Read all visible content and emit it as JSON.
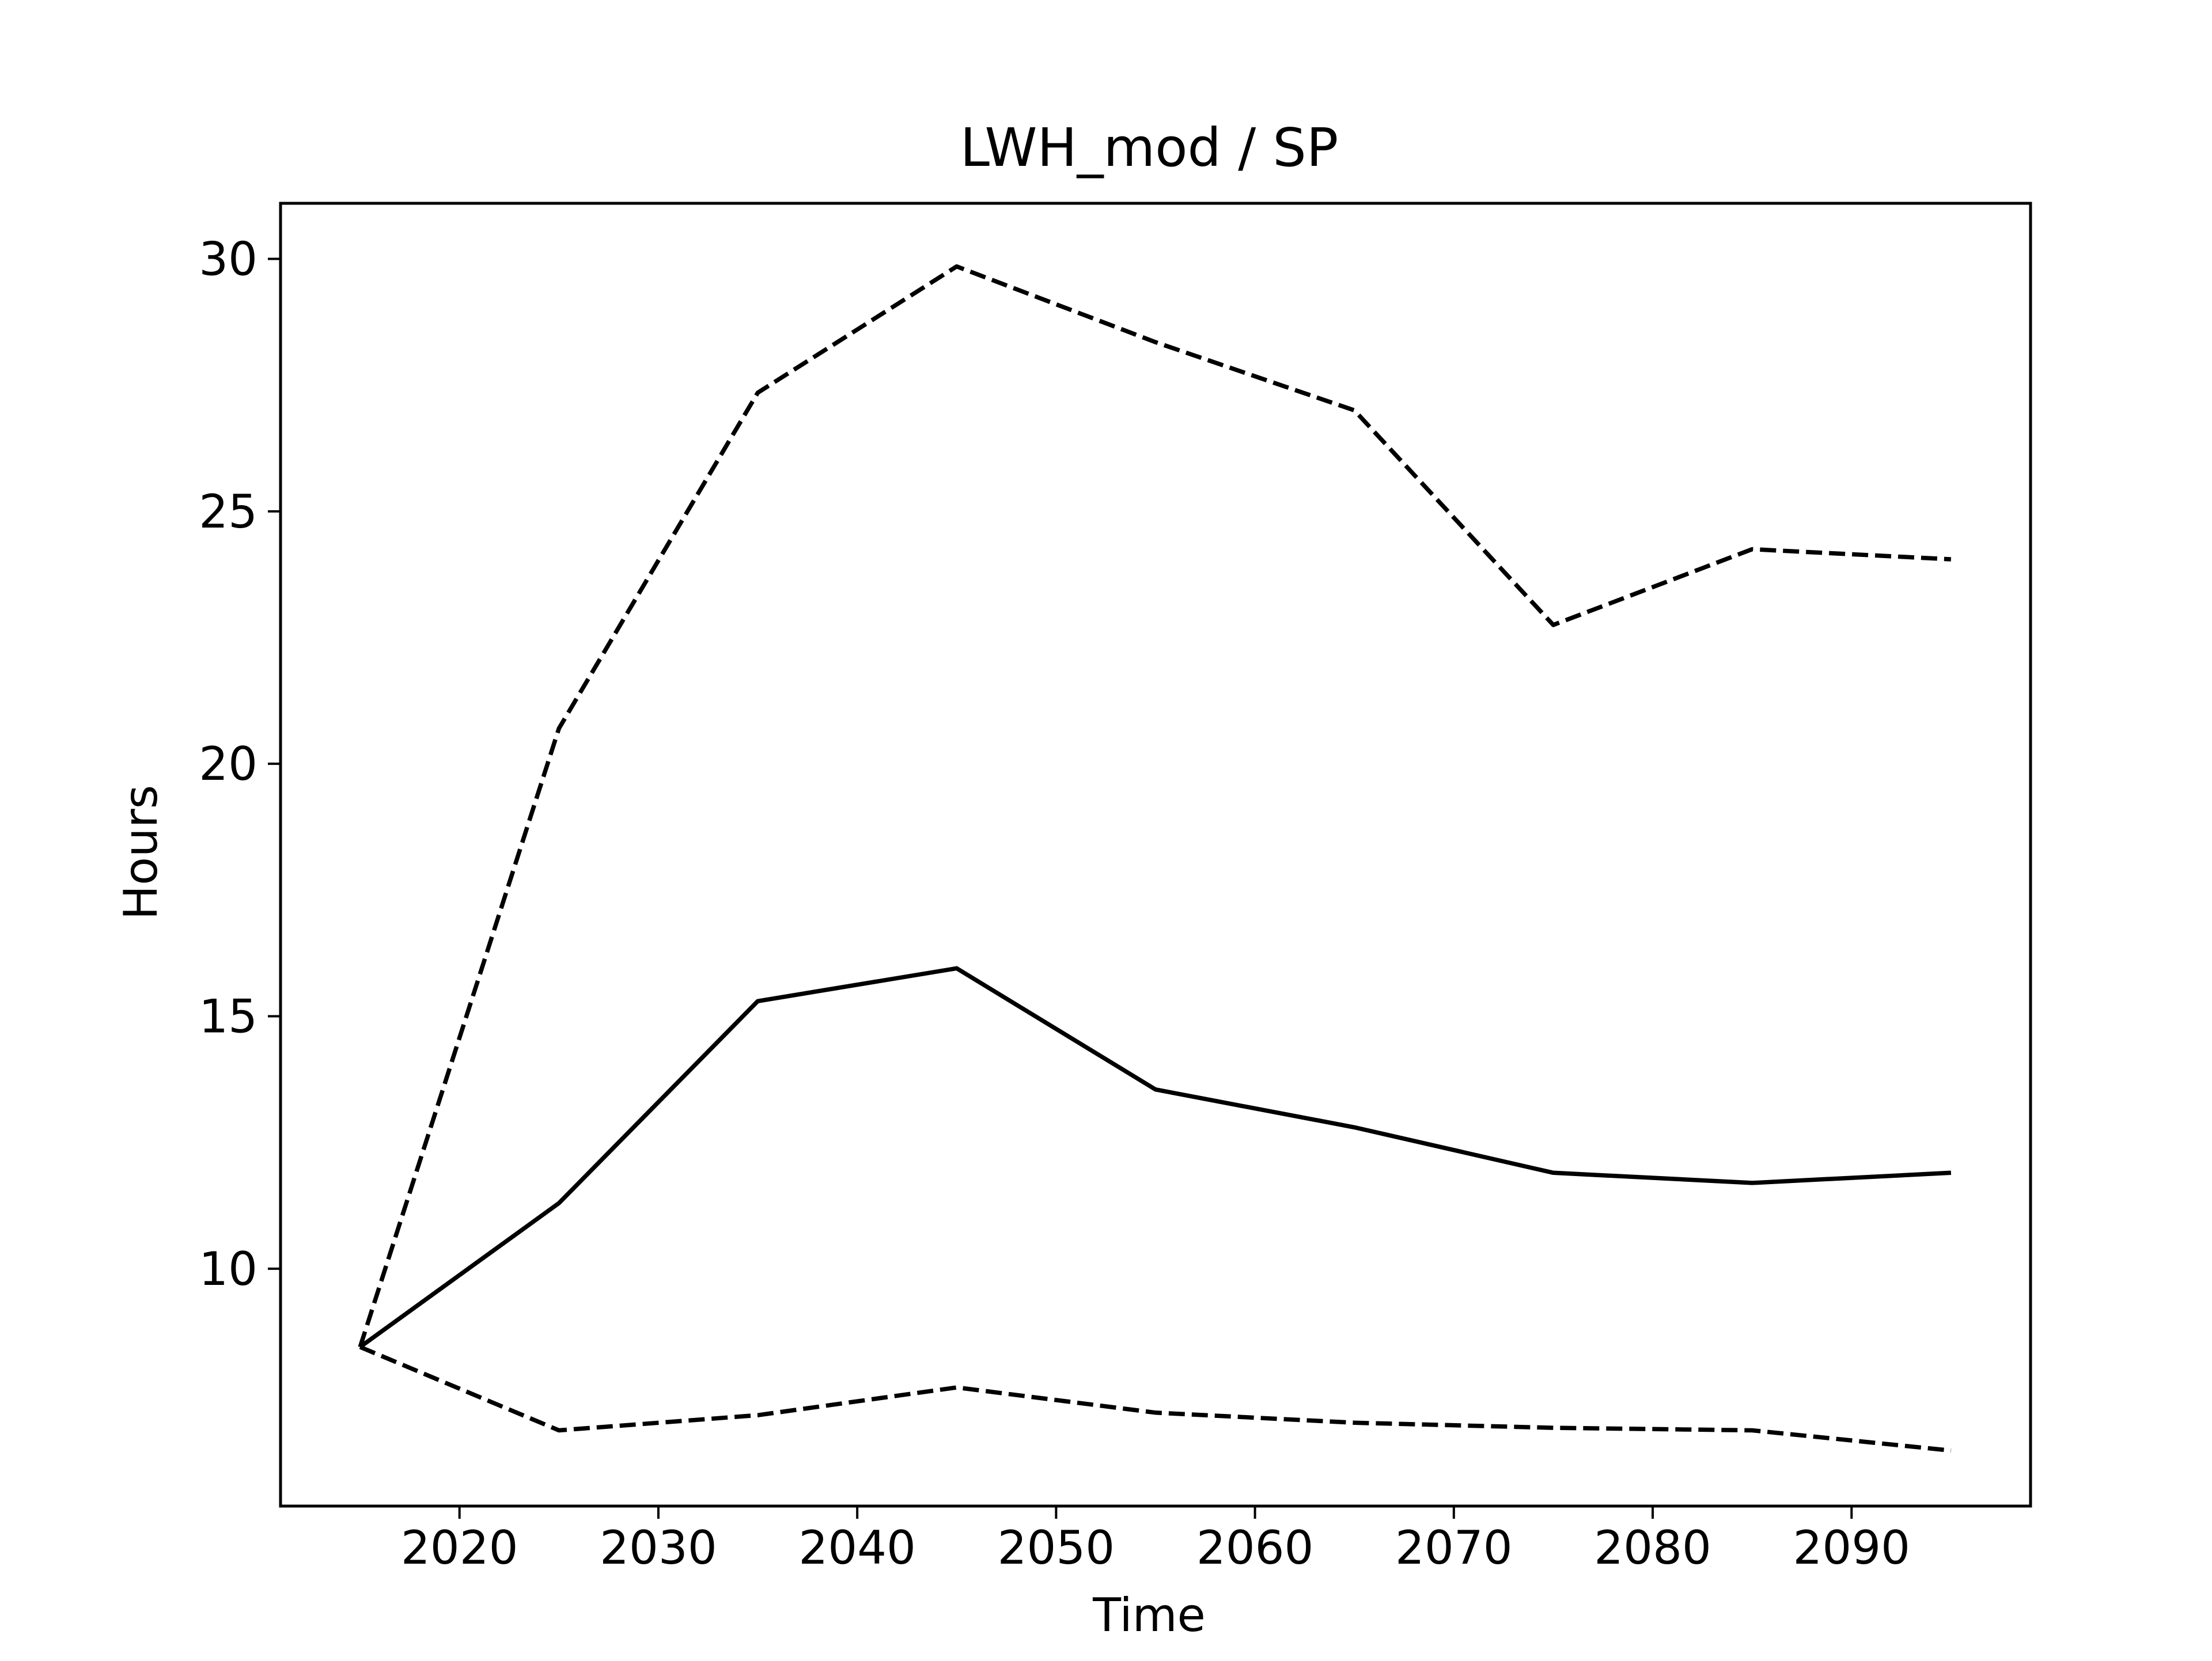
{
  "chart_data": {
    "type": "line",
    "title": "LWH_mod / SP",
    "xlabel": "Time",
    "ylabel": "Hours",
    "x": [
      2015,
      2025,
      2035,
      2045,
      2055,
      2065,
      2075,
      2085,
      2095
    ],
    "xlim": [
      2011,
      2099
    ],
    "ylim": [
      5.3,
      31.1
    ],
    "xticks": [
      2020,
      2030,
      2040,
      2050,
      2060,
      2070,
      2080,
      2090
    ],
    "yticks": [
      10,
      15,
      20,
      25,
      30
    ],
    "grid": false,
    "legend": null,
    "series": [
      {
        "style": "solid",
        "color": "#000000",
        "values": [
          8.45,
          11.3,
          15.3,
          15.95,
          13.55,
          12.8,
          11.9,
          11.7,
          11.9
        ]
      },
      {
        "style": "dashed",
        "color": "#000000",
        "values": [
          8.45,
          20.7,
          27.35,
          29.85,
          28.35,
          27.0,
          22.75,
          24.25,
          24.05
        ]
      },
      {
        "style": "dashed",
        "color": "#000000",
        "values": [
          8.45,
          6.8,
          7.1,
          7.65,
          7.15,
          6.95,
          6.85,
          6.8,
          6.4
        ]
      }
    ]
  }
}
